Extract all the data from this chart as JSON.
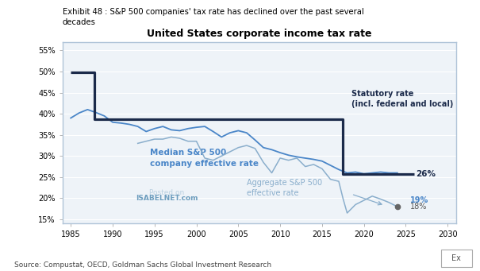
{
  "title": "United States corporate income tax rate",
  "exhibit_text": "Exhibit 48 : S&P 500 companies' tax rate has declined over the past several\ndecades",
  "source_text": "Source: Compustat, OECD, Goldman Sachs Global Investment Research",
  "xlim": [
    1984,
    2031
  ],
  "ylim": [
    14,
    57
  ],
  "yticks": [
    15,
    20,
    25,
    30,
    35,
    40,
    45,
    50,
    55
  ],
  "xticks": [
    1985,
    1990,
    1995,
    2000,
    2005,
    2010,
    2015,
    2020,
    2025,
    2030
  ],
  "statutory_color": "#1b2a4a",
  "median_color": "#4a86c8",
  "aggregate_color": "#8aaecc",
  "bg_color": "#eef3f8",
  "border_color": "#b0c4d8",
  "statutory_x": [
    1985,
    1987.8,
    1987.8,
    2017.5,
    2017.5,
    2026
  ],
  "statutory_y": [
    49.8,
    49.8,
    38.8,
    38.8,
    25.8,
    25.8
  ],
  "median_years": [
    1985,
    1986,
    1987,
    1988,
    1989,
    1990,
    1991,
    1992,
    1993,
    1994,
    1995,
    1996,
    1997,
    1998,
    1999,
    2000,
    2001,
    2002,
    2003,
    2004,
    2005,
    2006,
    2007,
    2008,
    2009,
    2010,
    2011,
    2012,
    2013,
    2014,
    2015,
    2016,
    2017,
    2018,
    2019,
    2020,
    2021,
    2022,
    2023,
    2024
  ],
  "median_values": [
    39.0,
    40.2,
    41.0,
    40.3,
    39.5,
    38.0,
    37.8,
    37.5,
    37.0,
    35.8,
    36.5,
    37.0,
    36.2,
    36.0,
    36.5,
    36.8,
    37.0,
    35.8,
    34.5,
    35.5,
    36.0,
    35.5,
    33.8,
    32.0,
    31.5,
    30.8,
    30.2,
    29.8,
    29.5,
    29.2,
    28.8,
    27.8,
    26.8,
    26.0,
    26.2,
    25.8,
    26.0,
    26.2,
    26.0,
    26.0
  ],
  "aggregate_years": [
    1993,
    1994,
    1995,
    1996,
    1997,
    1998,
    1999,
    2000,
    2001,
    2002,
    2003,
    2004,
    2005,
    2006,
    2007,
    2008,
    2009,
    2010,
    2011,
    2012,
    2013,
    2014,
    2015,
    2016,
    2017,
    2017.5,
    2018,
    2019,
    2020,
    2021,
    2022,
    2023,
    2024
  ],
  "aggregate_values": [
    33.0,
    33.5,
    34.0,
    34.0,
    34.5,
    34.2,
    33.5,
    33.5,
    29.5,
    29.0,
    30.0,
    31.0,
    32.0,
    32.5,
    31.8,
    28.5,
    26.0,
    29.5,
    29.0,
    29.5,
    27.5,
    28.0,
    27.0,
    24.5,
    24.0,
    20.0,
    16.5,
    18.5,
    19.5,
    20.5,
    19.8,
    19.0,
    18.0
  ],
  "label_26": "26%",
  "label_19": "19%",
  "label_18": "18%",
  "label_statutory": "Statutory rate\n(incl. federal and local)",
  "label_median": "Median S&P 500\ncompany effective rate",
  "label_aggregate": "Aggregate S&P 500\neffective rate",
  "watermark1": "Posted on",
  "watermark2": "ISABELNET.com"
}
